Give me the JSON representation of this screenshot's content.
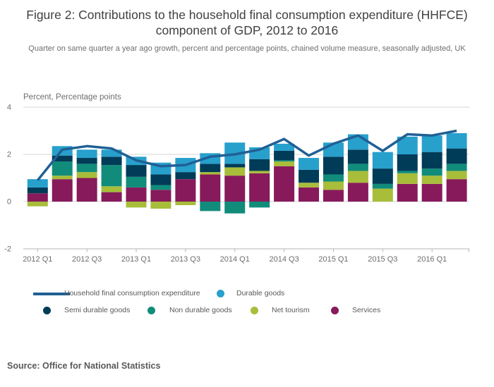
{
  "title": "Figure 2: Contributions to the household final consumption expenditure (HHFCE) component of GDP, 2012 to 2016",
  "subtitle": "Quarter on same quarter a year ago growth, percent and percentage points, chained volume measure, seasonally adjusted, UK",
  "axis_unit_label": "Percent, Percentage points",
  "source": "Source: Office for National Statistics",
  "colors": {
    "hhfce": "#206095",
    "durable": "#27a0cc",
    "semi_durable": "#003c57",
    "non_durable": "#118c7b",
    "net_tourism": "#a8bd3a",
    "services": "#871a5b",
    "grid": "#d6d6d6",
    "axis": "#b4b4b4",
    "tick_text": "#6d6e71"
  },
  "legend": {
    "items": [
      {
        "label": "Household final consumption expenditure",
        "key": "hhfce",
        "swatch": "line"
      },
      {
        "label": "Durable goods",
        "key": "durable",
        "swatch": "circle"
      },
      {
        "label": "Semi durable goods",
        "key": "semi_durable",
        "swatch": "circle"
      },
      {
        "label": "Non durable goods",
        "key": "non_durable",
        "swatch": "circle"
      },
      {
        "label": "Net tourism",
        "key": "net_tourism",
        "swatch": "circle"
      },
      {
        "label": "Services",
        "key": "services",
        "swatch": "circle"
      }
    ]
  },
  "chart_data": {
    "type": "bar",
    "subtype": "stacked-bars-with-line-overlay",
    "title": "Contributions to HHFCE component of GDP, 2012 to 2016",
    "ylabel": "Percent, Percentage points",
    "xlabel": "",
    "ylim": [
      -2,
      4
    ],
    "yticks": [
      4,
      2,
      0,
      -2
    ],
    "grid": "horizontal",
    "legend_position": "bottom",
    "categories": [
      "2012 Q1",
      "2012 Q2",
      "2012 Q3",
      "2012 Q4",
      "2013 Q1",
      "2013 Q2",
      "2013 Q3",
      "2013 Q4",
      "2014 Q1",
      "2014 Q2",
      "2014 Q3",
      "2014 Q4",
      "2015 Q1",
      "2015 Q2",
      "2015 Q3",
      "2015 Q4",
      "2016 Q1",
      "2016 Q2"
    ],
    "x_tick_labels": [
      "2012 Q1",
      "2012 Q3",
      "2013 Q1",
      "2013 Q3",
      "2014 Q1",
      "2014 Q3",
      "2015 Q1",
      "2015 Q3",
      "2016 Q1"
    ],
    "series": [
      {
        "name": "Services",
        "key": "services",
        "values": [
          0.35,
          0.95,
          1.0,
          0.4,
          0.6,
          0.5,
          0.95,
          1.15,
          1.1,
          1.2,
          1.5,
          0.6,
          0.5,
          0.8,
          0,
          0.75,
          0.75,
          0.95
        ]
      },
      {
        "name": "Net tourism",
        "key": "net_tourism",
        "values": [
          -0.2,
          0.15,
          0.25,
          0.25,
          -0.25,
          -0.3,
          -0.15,
          0.1,
          0.35,
          0.1,
          0.2,
          0.2,
          0.35,
          0.5,
          0.55,
          0.45,
          0.35,
          0.35
        ]
      },
      {
        "name": "Non durable goods",
        "key": "non_durable",
        "values": [
          0,
          0.6,
          0.35,
          0.9,
          0.45,
          0.2,
          0,
          -0.4,
          -0.5,
          -0.25,
          0.05,
          0,
          0.3,
          0.3,
          0.2,
          0.1,
          0.3,
          0.3
        ]
      },
      {
        "name": "Semi durable goods",
        "key": "semi_durable",
        "values": [
          0.25,
          0.25,
          0.25,
          0.35,
          0.5,
          0.45,
          0.3,
          0.35,
          0.15,
          0.5,
          0.4,
          0.55,
          0.75,
          0.6,
          0.65,
          0.7,
          0.7,
          0.65
        ]
      },
      {
        "name": "Durable goods",
        "key": "durable",
        "values": [
          0.35,
          0.4,
          0.35,
          0.3,
          0.35,
          0.5,
          0.6,
          0.45,
          0.9,
          0.5,
          0.3,
          0.5,
          0.6,
          0.65,
          0.7,
          0.75,
          0.7,
          0.65
        ]
      }
    ],
    "line_series": {
      "name": "Household final consumption expenditure",
      "key": "hhfce",
      "values": [
        0.9,
        2.2,
        2.35,
        2.25,
        1.75,
        1.5,
        1.55,
        1.9,
        2.0,
        2.2,
        2.65,
        1.95,
        2.45,
        2.8,
        2.15,
        2.85,
        2.8,
        3.0
      ]
    }
  }
}
